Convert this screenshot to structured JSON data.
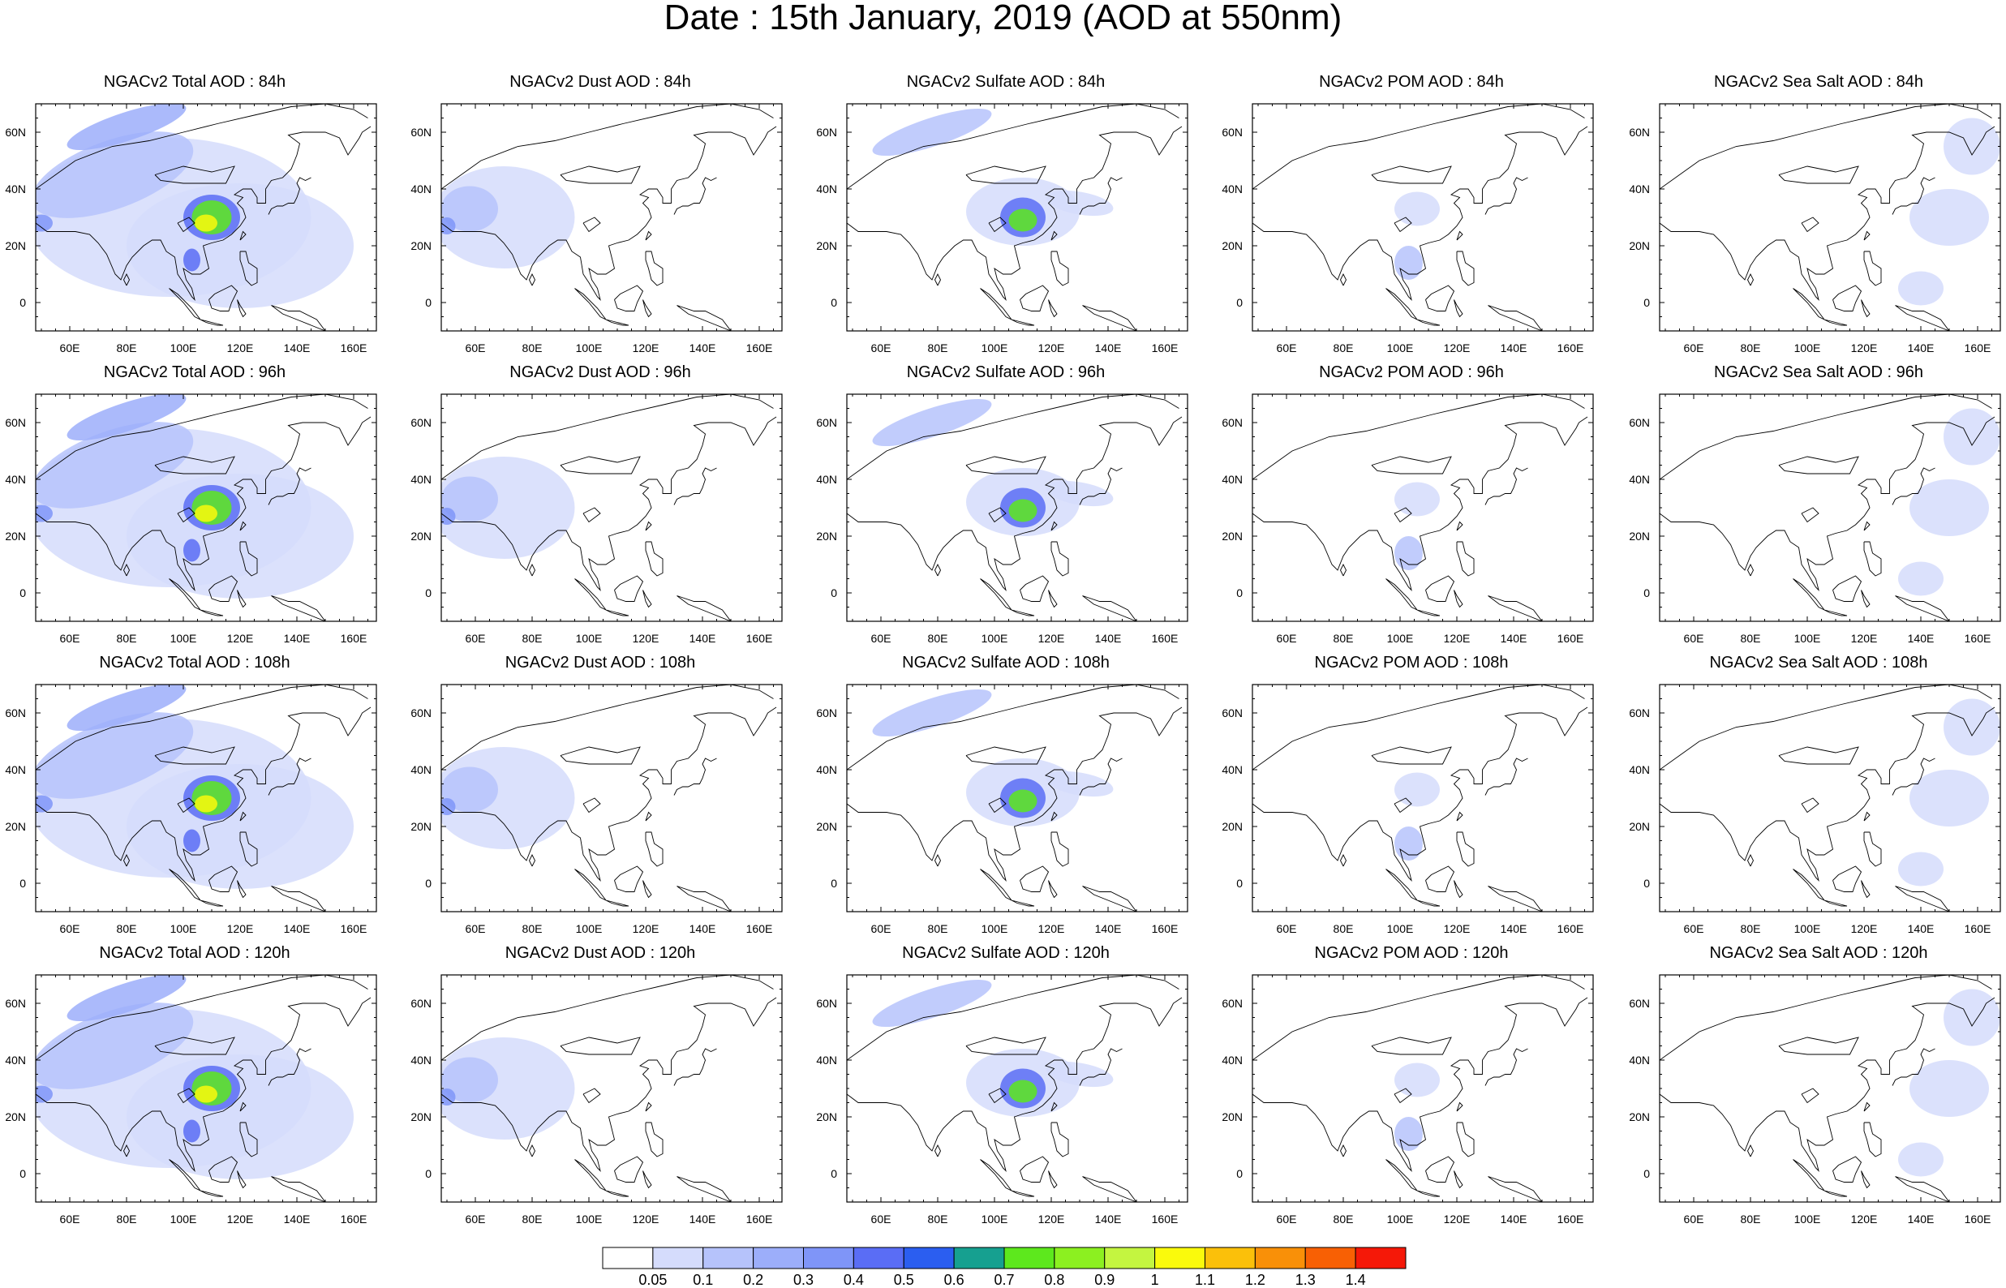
{
  "title": "Date : 15th January, 2019 (AOD at 550nm)",
  "map": {
    "lon_range": [
      48,
      168
    ],
    "lat_range": [
      -10,
      70
    ],
    "x_ticks": [
      "60E",
      "80E",
      "100E",
      "120E",
      "140E",
      "160E"
    ],
    "y_ticks": [
      "0",
      "20N",
      "40N",
      "60N"
    ]
  },
  "panels": [
    {
      "title": "NGACv2 Total AOD : 84h",
      "species": "total",
      "hour": 84
    },
    {
      "title": "NGACv2 Dust AOD : 84h",
      "species": "dust",
      "hour": 84
    },
    {
      "title": "NGACv2 Sulfate AOD : 84h",
      "species": "sulfate",
      "hour": 84
    },
    {
      "title": "NGACv2 POM AOD : 84h",
      "species": "pom",
      "hour": 84
    },
    {
      "title": "NGACv2 Sea Salt AOD : 84h",
      "species": "seasalt",
      "hour": 84
    },
    {
      "title": "NGACv2 Total AOD : 96h",
      "species": "total",
      "hour": 96
    },
    {
      "title": "NGACv2 Dust AOD : 96h",
      "species": "dust",
      "hour": 96
    },
    {
      "title": "NGACv2 Sulfate AOD : 96h",
      "species": "sulfate",
      "hour": 96
    },
    {
      "title": "NGACv2 POM AOD : 96h",
      "species": "pom",
      "hour": 96
    },
    {
      "title": "NGACv2 Sea Salt AOD : 96h",
      "species": "seasalt",
      "hour": 96
    },
    {
      "title": "NGACv2 Total AOD : 108h",
      "species": "total",
      "hour": 108
    },
    {
      "title": "NGACv2 Dust AOD : 108h",
      "species": "dust",
      "hour": 108
    },
    {
      "title": "NGACv2 Sulfate AOD : 108h",
      "species": "sulfate",
      "hour": 108
    },
    {
      "title": "NGACv2 POM AOD : 108h",
      "species": "pom",
      "hour": 108
    },
    {
      "title": "NGACv2 Sea Salt AOD : 108h",
      "species": "seasalt",
      "hour": 108
    },
    {
      "title": "NGACv2 Total AOD : 120h",
      "species": "total",
      "hour": 120
    },
    {
      "title": "NGACv2 Dust AOD : 120h",
      "species": "dust",
      "hour": 120
    },
    {
      "title": "NGACv2 Sulfate AOD : 120h",
      "species": "sulfate",
      "hour": 120
    },
    {
      "title": "NGACv2 POM AOD : 120h",
      "species": "pom",
      "hour": 120
    },
    {
      "title": "NGACv2 Sea Salt  AOD : 120h",
      "species": "seasalt",
      "hour": 120
    }
  ],
  "colorbar": {
    "labels": [
      "0.05",
      "0.1",
      "0.2",
      "0.3",
      "0.4",
      "0.5",
      "0.6",
      "0.7",
      "0.8",
      "0.9",
      "1",
      "1.1",
      "1.2",
      "1.3",
      "1.4"
    ],
    "colors": [
      "#ffffff",
      "#d5dcfc",
      "#b6c3fb",
      "#9caefa",
      "#7f95f8",
      "#5a6df5",
      "#2b5ef0",
      "#16a090",
      "#5de81d",
      "#8cf020",
      "#c4f540",
      "#fafa0c",
      "#fbc00a",
      "#f99008",
      "#f86004",
      "#f51808"
    ]
  }
}
